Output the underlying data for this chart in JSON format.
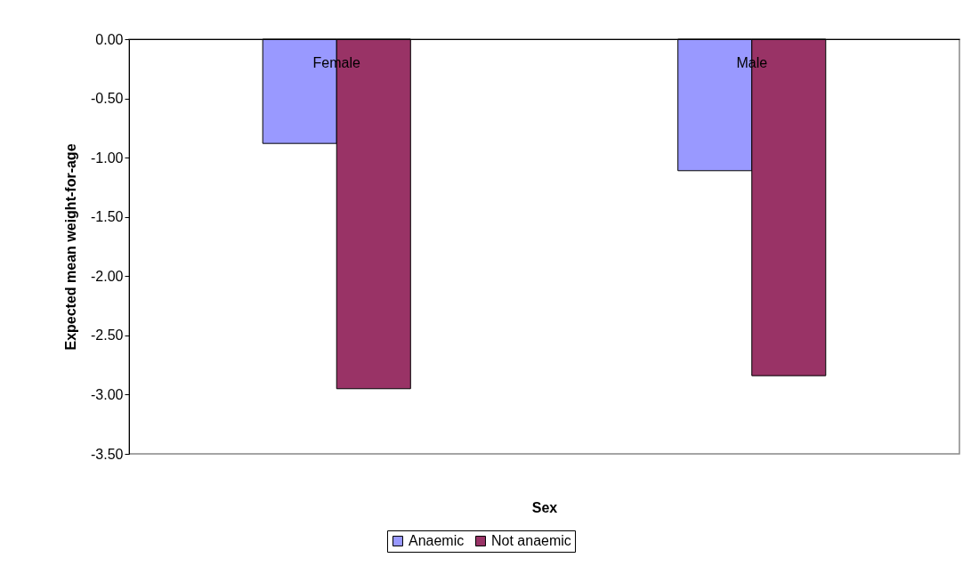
{
  "chart_data": {
    "type": "bar",
    "xlabel": "Sex",
    "ylabel": "Expected mean weight-for-age",
    "categories": [
      "Female",
      "Male"
    ],
    "series": [
      {
        "name": "Anaemic",
        "color": "#9999ff",
        "values": [
          -0.88,
          -1.11
        ]
      },
      {
        "name": "Not anaemic",
        "color": "#993366",
        "values": [
          -2.95,
          -2.84
        ]
      }
    ],
    "ylim": [
      -3.5,
      0
    ],
    "yticks": [
      {
        "value": 0,
        "label": "0.00"
      },
      {
        "value": -0.5,
        "label": "-0.50"
      },
      {
        "value": -1,
        "label": "-1.00"
      },
      {
        "value": -1.5,
        "label": "-1.50"
      },
      {
        "value": -2,
        "label": "-2.00"
      },
      {
        "value": -2.5,
        "label": "-2.50"
      },
      {
        "value": -3,
        "label": "-3.00"
      },
      {
        "value": -3.5,
        "label": "-3.50"
      }
    ],
    "grid": false,
    "legend": "bottom"
  }
}
